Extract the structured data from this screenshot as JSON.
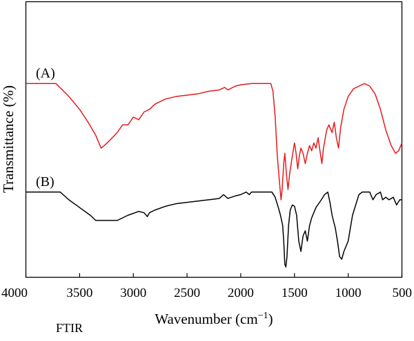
{
  "footer": {
    "label": "FTIR"
  },
  "chart_data": {
    "type": "line",
    "title": "",
    "xlabel": "Wavenumber (cm",
    "xlabel_sup": "−1",
    "xlabel_close": ")",
    "ylabel": "Transmittance (%)",
    "xlim": [
      4000,
      500
    ],
    "x_reversed": true,
    "x_ticks": [
      4000,
      3500,
      3000,
      2500,
      2000,
      1500,
      1000,
      500
    ],
    "y_ticks_shown": false,
    "ylim": [
      0,
      100
    ],
    "grid": false,
    "series": [
      {
        "name": "(A)",
        "color": "#e41a1c",
        "points": [
          [
            4000,
            73
          ],
          [
            3720,
            73
          ],
          [
            3600,
            68
          ],
          [
            3500,
            63
          ],
          [
            3420,
            58
          ],
          [
            3350,
            53
          ],
          [
            3300,
            48
          ],
          [
            3270,
            49
          ],
          [
            3220,
            51
          ],
          [
            3150,
            54
          ],
          [
            3100,
            57
          ],
          [
            3050,
            57
          ],
          [
            3000,
            60
          ],
          [
            2950,
            59
          ],
          [
            2900,
            62
          ],
          [
            2850,
            63
          ],
          [
            2800,
            65
          ],
          [
            2700,
            67
          ],
          [
            2600,
            68
          ],
          [
            2500,
            68.5
          ],
          [
            2400,
            69
          ],
          [
            2300,
            70
          ],
          [
            2200,
            70.5
          ],
          [
            2150,
            71.5
          ],
          [
            2120,
            70.5
          ],
          [
            2050,
            72
          ],
          [
            2000,
            72.5
          ],
          [
            1900,
            73
          ],
          [
            1720,
            73
          ],
          [
            1700,
            70
          ],
          [
            1680,
            60
          ],
          [
            1660,
            45
          ],
          [
            1640,
            35
          ],
          [
            1625,
            28
          ],
          [
            1615,
            32
          ],
          [
            1600,
            42
          ],
          [
            1590,
            46
          ],
          [
            1575,
            38
          ],
          [
            1560,
            32
          ],
          [
            1545,
            38
          ],
          [
            1520,
            45
          ],
          [
            1500,
            50
          ],
          [
            1485,
            46
          ],
          [
            1470,
            40
          ],
          [
            1455,
            45
          ],
          [
            1440,
            48
          ],
          [
            1420,
            46
          ],
          [
            1400,
            42
          ],
          [
            1380,
            46
          ],
          [
            1360,
            49
          ],
          [
            1340,
            47
          ],
          [
            1320,
            50
          ],
          [
            1300,
            48
          ],
          [
            1280,
            52
          ],
          [
            1260,
            46
          ],
          [
            1245,
            42
          ],
          [
            1230,
            48
          ],
          [
            1200,
            55
          ],
          [
            1180,
            57
          ],
          [
            1150,
            54
          ],
          [
            1130,
            58
          ],
          [
            1110,
            52
          ],
          [
            1090,
            48
          ],
          [
            1070,
            56
          ],
          [
            1040,
            63
          ],
          [
            1000,
            68
          ],
          [
            950,
            71
          ],
          [
            900,
            72
          ],
          [
            850,
            73
          ],
          [
            800,
            72
          ],
          [
            750,
            69
          ],
          [
            700,
            63
          ],
          [
            650,
            55
          ],
          [
            600,
            49
          ],
          [
            560,
            46
          ],
          [
            530,
            47
          ],
          [
            500,
            50
          ]
        ]
      },
      {
        "name": "(B)",
        "color": "#000000",
        "points": [
          [
            4000,
            31
          ],
          [
            3680,
            31
          ],
          [
            3600,
            28
          ],
          [
            3500,
            25
          ],
          [
            3400,
            22
          ],
          [
            3350,
            20
          ],
          [
            3300,
            20
          ],
          [
            3150,
            20
          ],
          [
            3050,
            22
          ],
          [
            2950,
            23.5
          ],
          [
            2900,
            23
          ],
          [
            2870,
            21.5
          ],
          [
            2850,
            23
          ],
          [
            2800,
            24
          ],
          [
            2700,
            25.5
          ],
          [
            2600,
            26.5
          ],
          [
            2500,
            27
          ],
          [
            2400,
            27.5
          ],
          [
            2300,
            28
          ],
          [
            2200,
            28.5
          ],
          [
            2160,
            30
          ],
          [
            2120,
            28.5
          ],
          [
            2050,
            29.5
          ],
          [
            2000,
            30
          ],
          [
            1950,
            31
          ],
          [
            1920,
            30
          ],
          [
            1900,
            31
          ],
          [
            1710,
            31
          ],
          [
            1680,
            29
          ],
          [
            1650,
            25
          ],
          [
            1630,
            22
          ],
          [
            1610,
            18
          ],
          [
            1600,
            12
          ],
          [
            1590,
            3
          ],
          [
            1580,
            2
          ],
          [
            1570,
            6
          ],
          [
            1555,
            18
          ],
          [
            1540,
            24
          ],
          [
            1520,
            26
          ],
          [
            1500,
            25.5
          ],
          [
            1480,
            22
          ],
          [
            1460,
            12
          ],
          [
            1440,
            8
          ],
          [
            1420,
            14
          ],
          [
            1400,
            16
          ],
          [
            1380,
            12
          ],
          [
            1360,
            18
          ],
          [
            1340,
            21
          ],
          [
            1300,
            25
          ],
          [
            1250,
            28
          ],
          [
            1220,
            30
          ],
          [
            1190,
            31
          ],
          [
            1170,
            27
          ],
          [
            1150,
            22
          ],
          [
            1120,
            17
          ],
          [
            1100,
            12
          ],
          [
            1080,
            6
          ],
          [
            1060,
            5
          ],
          [
            1040,
            8
          ],
          [
            1000,
            12
          ],
          [
            960,
            22
          ],
          [
            930,
            26
          ],
          [
            900,
            30
          ],
          [
            870,
            31
          ],
          [
            830,
            31
          ],
          [
            800,
            31
          ],
          [
            770,
            28
          ],
          [
            740,
            30
          ],
          [
            700,
            31
          ],
          [
            680,
            28
          ],
          [
            650,
            29
          ],
          [
            620,
            28
          ],
          [
            580,
            29
          ],
          [
            550,
            26
          ],
          [
            520,
            28
          ],
          [
            500,
            28
          ]
        ]
      }
    ]
  }
}
